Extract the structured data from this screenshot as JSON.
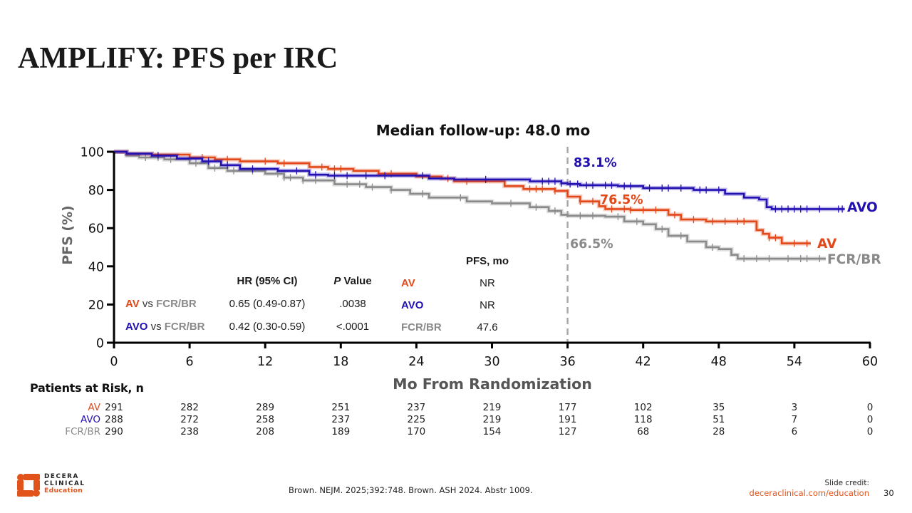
{
  "slide": {
    "title": "AMPLIFY: PFS per IRC",
    "page_number": "30",
    "citation": "Brown. NEJM. 2025;392:748. Brown. ASH 2024. Abstr 1009.",
    "credit_label": "Slide credit:",
    "credit_link": "deceraclinical.com/education",
    "logo": {
      "line1": "DECERA",
      "line2": "CLINICAL",
      "line3": "Education",
      "color": "#E2531C"
    }
  },
  "chart_data": {
    "type": "line",
    "subtype": "kaplan-meier step",
    "title": "Median follow-up: 48.0 mo",
    "xlabel": "Mo From Randomization",
    "ylabel": "PFS (%)",
    "xlim": [
      0,
      60
    ],
    "ylim": [
      0,
      100
    ],
    "x_ticks": [
      0,
      6,
      12,
      18,
      24,
      30,
      36,
      42,
      48,
      54,
      60
    ],
    "y_ticks": [
      0,
      20,
      40,
      60,
      80,
      100
    ],
    "grid": false,
    "legend": "direct labels at curve ends (right)",
    "reference_line_x": 36,
    "series": [
      {
        "name": "AV",
        "color": "#E2491A",
        "end_label": "AV",
        "landmark_label": "76.5%",
        "landmark_value": 76.5,
        "points": [
          [
            0,
            100
          ],
          [
            1,
            99
          ],
          [
            3,
            98.5
          ],
          [
            6,
            97
          ],
          [
            8,
            96
          ],
          [
            10,
            95
          ],
          [
            13,
            94
          ],
          [
            15.5,
            92
          ],
          [
            17,
            91
          ],
          [
            19,
            90
          ],
          [
            21,
            88.5
          ],
          [
            24,
            87
          ],
          [
            26,
            86
          ],
          [
            27,
            84.5
          ],
          [
            31,
            82
          ],
          [
            32.5,
            80.5
          ],
          [
            35,
            79.5
          ],
          [
            36,
            76.5
          ],
          [
            37,
            74
          ],
          [
            38.5,
            71.5
          ],
          [
            39,
            70
          ],
          [
            41,
            69.5
          ],
          [
            44,
            67
          ],
          [
            45,
            64.5
          ],
          [
            47,
            63.5
          ],
          [
            50.5,
            63.5
          ],
          [
            51,
            59
          ],
          [
            51.5,
            57
          ],
          [
            52,
            55
          ],
          [
            53,
            52
          ],
          [
            55.3,
            52
          ]
        ],
        "censors": [
          7,
          9,
          12,
          13.5,
          16.5,
          17.5,
          18,
          22,
          26.5,
          28,
          33,
          33.5,
          34,
          35,
          37,
          38,
          39.5,
          40.5,
          41,
          42,
          43,
          44.5,
          46,
          47.5,
          48.5,
          49.5,
          50,
          52,
          52.5,
          54,
          55
        ]
      },
      {
        "name": "AVO",
        "color": "#2310B2",
        "end_label": "AVO",
        "landmark_label": "83.1%",
        "landmark_value": 83.1,
        "points": [
          [
            0,
            100
          ],
          [
            1,
            99
          ],
          [
            3,
            98
          ],
          [
            5,
            96.5
          ],
          [
            7,
            95
          ],
          [
            8.5,
            93
          ],
          [
            10,
            91
          ],
          [
            13,
            90
          ],
          [
            15.5,
            88
          ],
          [
            17,
            87.5
          ],
          [
            25,
            86
          ],
          [
            27,
            85.5
          ],
          [
            33,
            84.5
          ],
          [
            35.5,
            83.5
          ],
          [
            36,
            83.1
          ],
          [
            37,
            82.5
          ],
          [
            40,
            82
          ],
          [
            42,
            81
          ],
          [
            46,
            80
          ],
          [
            48.5,
            78
          ],
          [
            50,
            76
          ],
          [
            51.2,
            75
          ],
          [
            51.8,
            71
          ],
          [
            52.2,
            70
          ],
          [
            58,
            70
          ]
        ],
        "censors": [
          3.5,
          7.5,
          9,
          11,
          14.5,
          16,
          17.5,
          18.5,
          20,
          21.5,
          24.5,
          29.5,
          34,
          34.5,
          35,
          35.5,
          36.2,
          36.8,
          37.5,
          38,
          39,
          39.5,
          40.5,
          41,
          42.5,
          43.5,
          44,
          45,
          46.5,
          47,
          48,
          52.5,
          53,
          53.5,
          54,
          54.5,
          55,
          56,
          57.5,
          57.8
        ]
      },
      {
        "name": "FCR/BR",
        "color": "#8A8A8A",
        "end_label": "FCR/BR",
        "landmark_label": "66.5%",
        "landmark_value": 66.5,
        "points": [
          [
            0,
            100
          ],
          [
            1,
            98
          ],
          [
            2,
            97
          ],
          [
            4,
            96
          ],
          [
            6,
            94
          ],
          [
            7.5,
            91.5
          ],
          [
            9,
            90
          ],
          [
            12,
            88.5
          ],
          [
            13.5,
            86.5
          ],
          [
            15,
            85
          ],
          [
            17.5,
            83
          ],
          [
            20,
            81.5
          ],
          [
            22,
            80
          ],
          [
            23.5,
            78
          ],
          [
            25,
            76
          ],
          [
            28,
            74
          ],
          [
            30,
            73
          ],
          [
            33,
            71
          ],
          [
            34.5,
            69
          ],
          [
            35.5,
            67
          ],
          [
            36,
            66.5
          ],
          [
            39,
            66
          ],
          [
            40.5,
            63.5
          ],
          [
            42,
            62
          ],
          [
            43,
            59.5
          ],
          [
            44,
            56
          ],
          [
            45.5,
            53
          ],
          [
            47,
            50
          ],
          [
            48,
            49
          ],
          [
            49,
            46
          ],
          [
            49.5,
            44
          ],
          [
            56.5,
            44
          ]
        ],
        "censors": [
          2.5,
          3.5,
          4.5,
          6.5,
          8,
          9.5,
          11,
          13,
          13.5,
          14,
          15,
          16,
          18.5,
          19.5,
          20.5,
          22,
          24.5,
          27.5,
          31.5,
          33.5,
          35,
          37,
          38,
          40,
          41.5,
          43.5,
          45,
          47.5,
          50,
          51,
          52,
          53.5,
          54.5,
          55,
          56
        ]
      }
    ],
    "hr_table": {
      "col_hr": "HR (95% CI)",
      "col_p_italic": "P",
      "col_p_rest": " Value",
      "rows": [
        {
          "arm1": "AV",
          "vs": " vs ",
          "arm2": "FCR/BR",
          "hr": "0.65 (0.49-0.87)",
          "p": ".0038"
        },
        {
          "arm1": "AVO",
          "vs": " vs ",
          "arm2": "FCR/BR",
          "hr": "0.42 (0.30-0.59)",
          "p": "<.0001"
        }
      ]
    },
    "pfs_table": {
      "header": "PFS, mo",
      "rows": [
        {
          "arm": "AV",
          "value": "NR"
        },
        {
          "arm": "AVO",
          "value": "NR"
        },
        {
          "arm": "FCR/BR",
          "value": "47.6"
        }
      ]
    },
    "risk_table": {
      "title": "Patients at Risk, n",
      "times": [
        0,
        6,
        12,
        18,
        24,
        30,
        36,
        42,
        48,
        54,
        60
      ],
      "rows": [
        {
          "label": "AV",
          "values": [
            "291",
            "282",
            "289",
            "251",
            "237",
            "219",
            "177",
            "102",
            "35",
            "3",
            "0"
          ]
        },
        {
          "label": "AVO",
          "values": [
            "288",
            "272",
            "258",
            "237",
            "225",
            "219",
            "191",
            "118",
            "51",
            "7",
            "0"
          ]
        },
        {
          "label": "FCR/BR",
          "values": [
            "290",
            "238",
            "208",
            "189",
            "170",
            "154",
            "127",
            "68",
            "28",
            "6",
            "0"
          ]
        }
      ]
    }
  }
}
